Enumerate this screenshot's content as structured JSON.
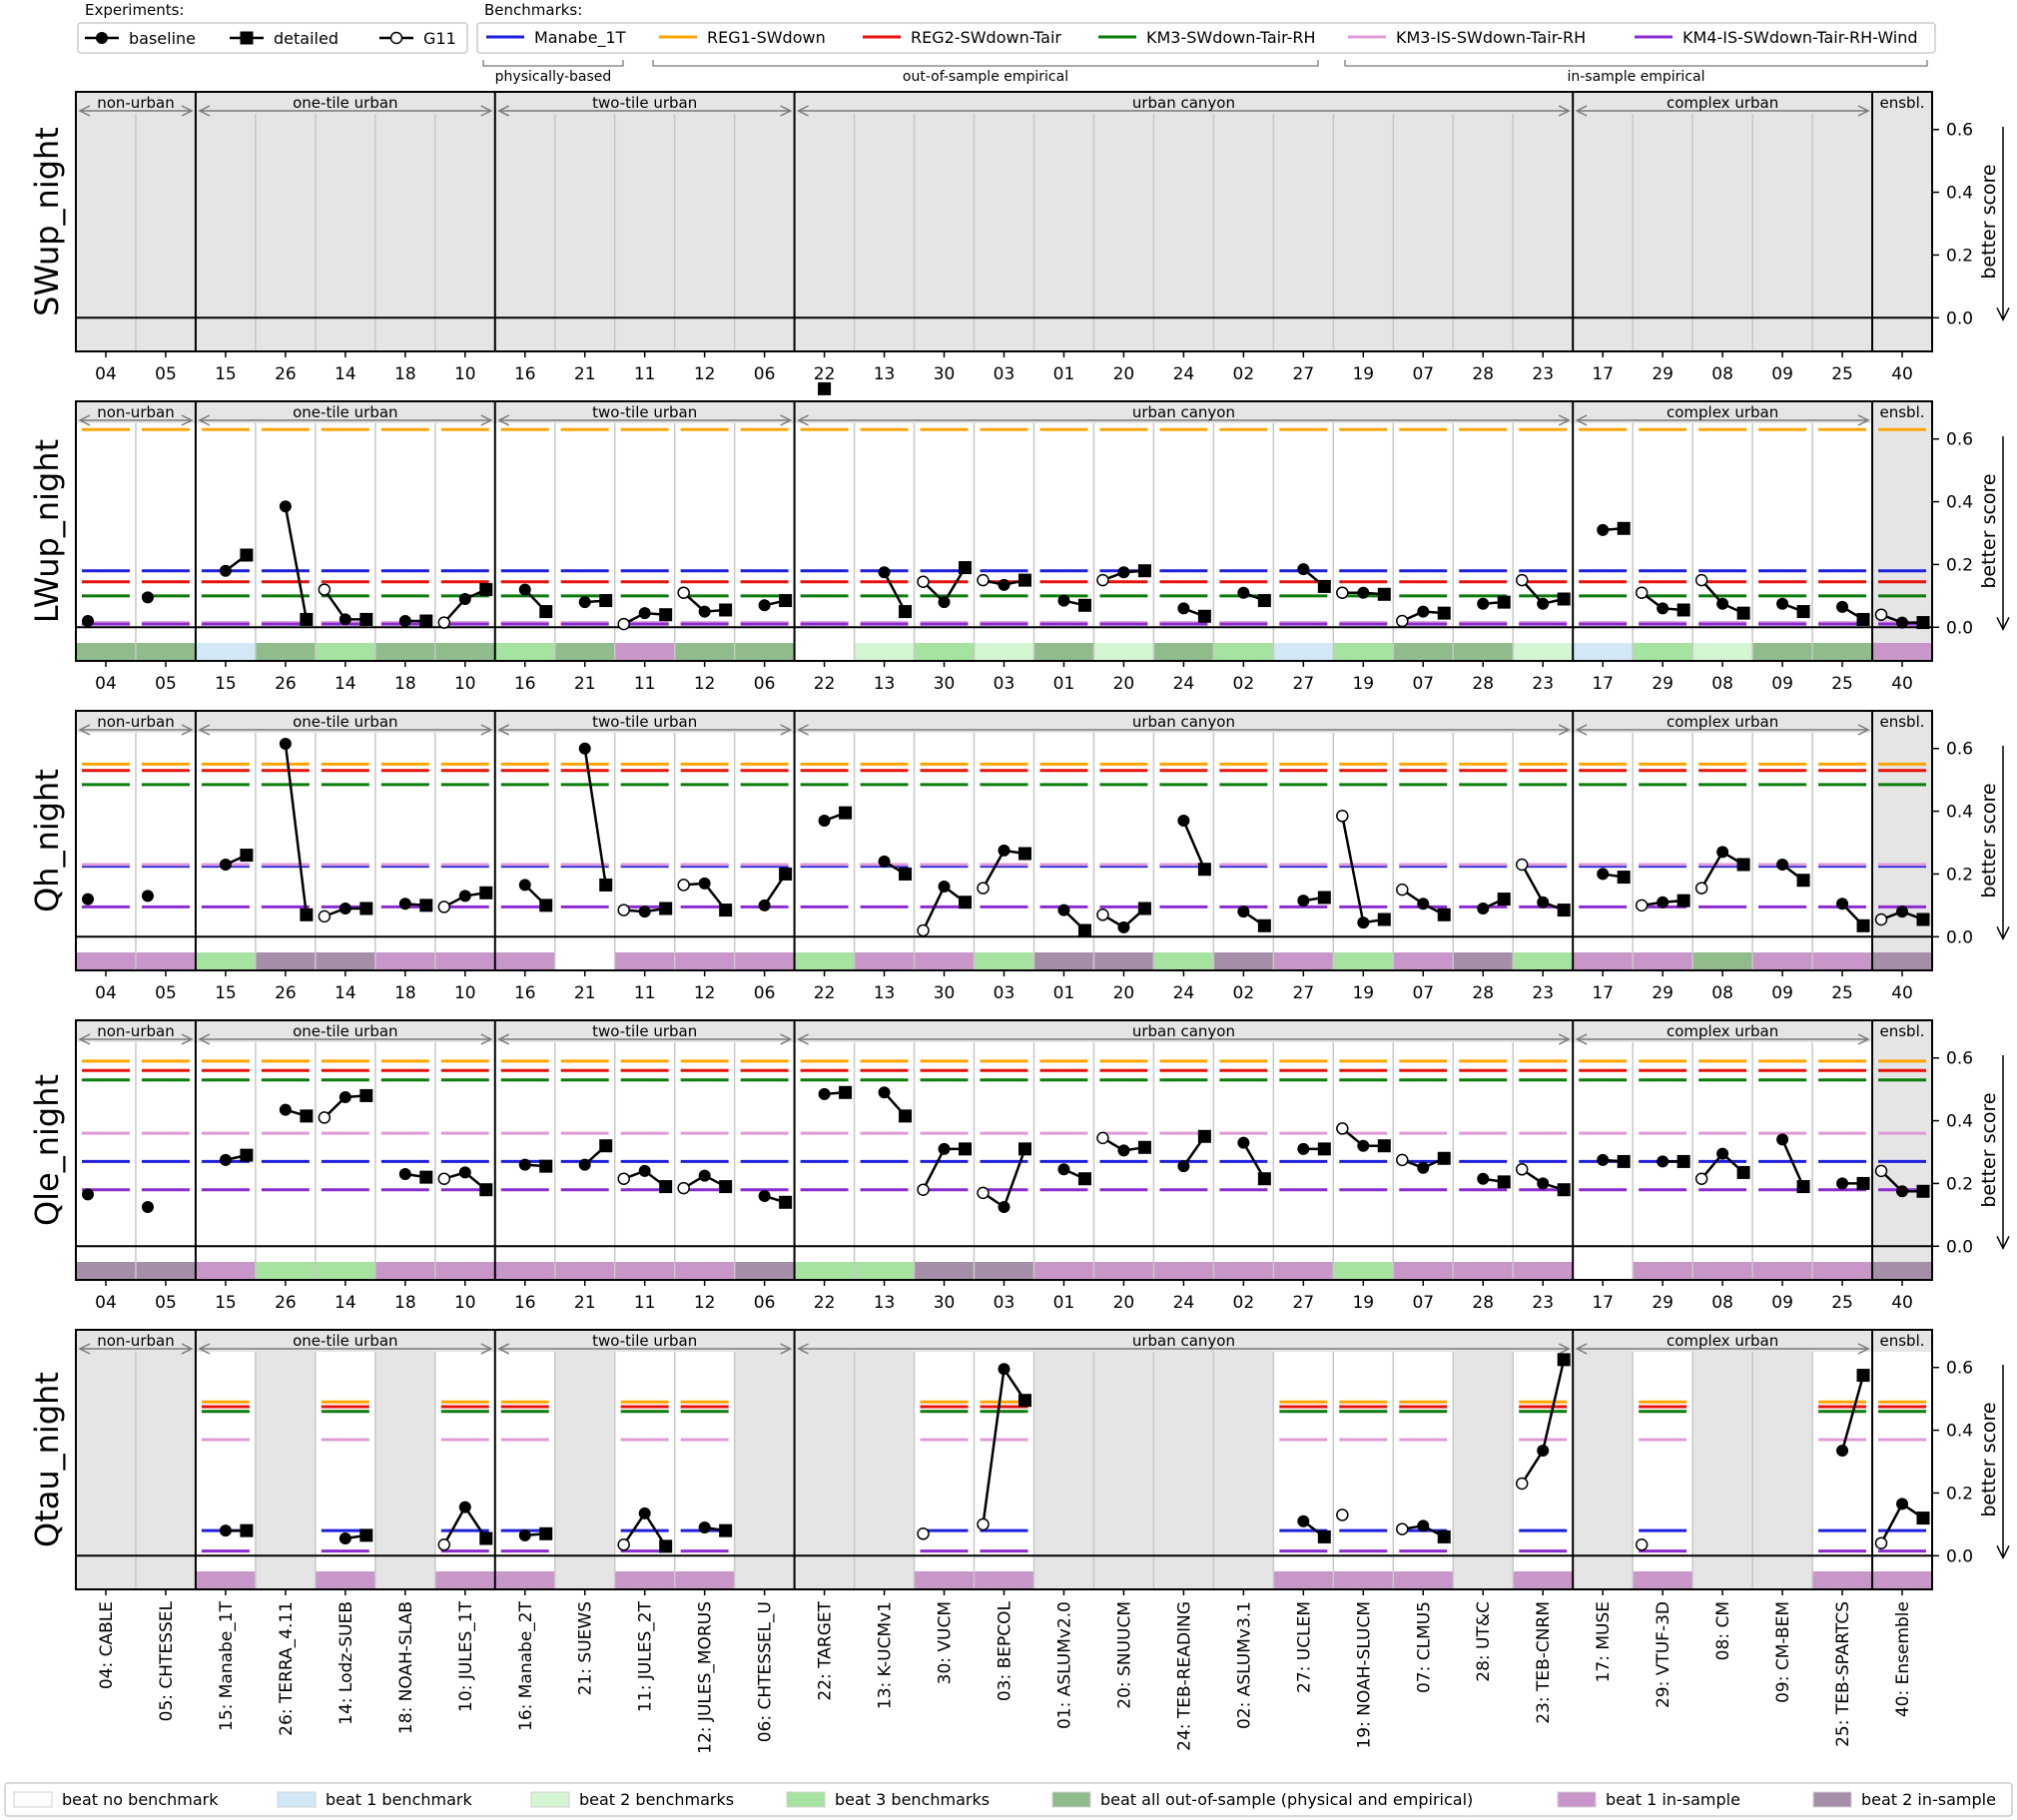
{
  "legend_experiments": {
    "title": "Experiments:",
    "items": [
      {
        "label": "baseline",
        "marker": "circle-filled"
      },
      {
        "label": "detailed",
        "marker": "square-filled"
      },
      {
        "label": "G11",
        "marker": "circle-open"
      }
    ]
  },
  "legend_benchmarks": {
    "title": "Benchmarks:",
    "items": [
      {
        "label": "Manabe_1T",
        "color": "#1f1fdd"
      },
      {
        "label": "REG1-SWdown",
        "color": "#ffa500"
      },
      {
        "label": "REG2-SWdown-Tair",
        "color": "#e8120c"
      },
      {
        "label": "KM3-SWdown-Tair-RH",
        "color": "#0b7d0b"
      },
      {
        "label": "KM3-IS-SWdown-Tair-RH",
        "color": "#e09ad8"
      },
      {
        "label": "KM4-IS-SWdown-Tair-RH-Wind",
        "color": "#8c2bd0"
      }
    ],
    "groups": [
      "physically-based",
      "out-of-sample empirical",
      "in-sample empirical"
    ]
  },
  "legend_bottom": [
    {
      "label": "beat no benchmark",
      "color": "#ffffff"
    },
    {
      "label": "beat 1 benchmark",
      "color": "#d2e8f7"
    },
    {
      "label": "beat 2 benchmarks",
      "color": "#d3f5d2"
    },
    {
      "label": "beat 3 benchmarks",
      "color": "#a7e3a0"
    },
    {
      "label": "beat all out-of-sample (physical and empirical)",
      "color": "#8fbc8a"
    },
    {
      "label": "beat 1 in-sample",
      "color": "#c996c9"
    },
    {
      "label": "beat 2 in-sample",
      "color": "#a58fa8"
    }
  ],
  "chart_data": {
    "type": "line",
    "y_axis_label": "better score",
    "ylim": [
      -0.05,
      0.72
    ],
    "yticks": [
      0.0,
      0.2,
      0.4,
      0.6
    ],
    "group_labels": [
      "non-urban",
      "one-tile urban",
      "two-tile urban",
      "urban canyon",
      "complex urban",
      "ensbl."
    ],
    "group_sizes": [
      2,
      5,
      5,
      13,
      5,
      1
    ],
    "models": [
      "04: CABLE",
      "05: CHTESSEL",
      "15: Manabe_1T",
      "26: TERRA_4.11",
      "14: Lodz-SUEB",
      "18: NOAH-SLAB",
      "10: JULES_1T",
      "16: Manabe_2T",
      "21: SUEWS",
      "11: JULES_2T",
      "12: JULES_MORUS",
      "06: CHTESSEL_U",
      "22: TARGET",
      "13: K-UCMv1",
      "30: VUCM",
      "03: BEPCOL",
      "01: ASLUMv2.0",
      "20: SNUUCM",
      "24: TEB-READING",
      "02: ASLUMv3.1",
      "27: UCLEM",
      "19: NOAH-SLUCM",
      "07: CLMU5",
      "28: UT&C",
      "23: TEB-CNRM",
      "17: MUSE",
      "29: VTUF-3D",
      "08: CM",
      "09: CM-BEM",
      "25: TEB-SPARTCS",
      "40: Ensemble"
    ],
    "model_ids": [
      "04",
      "05",
      "15",
      "26",
      "14",
      "18",
      "10",
      "16",
      "21",
      "11",
      "12",
      "06",
      "22",
      "13",
      "30",
      "03",
      "01",
      "20",
      "24",
      "02",
      "27",
      "19",
      "07",
      "28",
      "23",
      "17",
      "29",
      "08",
      "09",
      "25",
      "40"
    ],
    "panels": [
      {
        "name": "SWup_night",
        "benchmarks": {},
        "values": {},
        "shade": [
          "g",
          "g",
          "g",
          "g",
          "g",
          "g",
          "g",
          "g",
          "g",
          "g",
          "g",
          "g",
          "g",
          "g",
          "g",
          "g",
          "g",
          "g",
          "g",
          "g",
          "g",
          "g",
          "g",
          "g",
          "g",
          "g",
          "g",
          "g",
          "g",
          "g",
          "g"
        ],
        "strip": []
      },
      {
        "name": "LWup_night",
        "benchmarks": {
          "Manabe_1T": 0.18,
          "REG1-SWdown": 0.63,
          "REG2-SWdown-Tair": 0.145,
          "KM3-SWdown-Tair-RH": 0.1,
          "KM3-IS-SWdown-Tair-RH": 0.015,
          "KM4-IS-SWdown-Tair-RH-Wind": 0.01
        },
        "values": {
          "04": {
            "baseline": 0.02
          },
          "05": {
            "baseline": 0.095
          },
          "15": {
            "baseline": 0.18,
            "detailed": 0.23
          },
          "26": {
            "baseline": 0.385,
            "detailed": 0.025
          },
          "14": {
            "g11": 0.12,
            "baseline": 0.025,
            "detailed": 0.025
          },
          "18": {
            "baseline": 0.02,
            "detailed": 0.02
          },
          "10": {
            "g11": 0.015,
            "baseline": 0.09,
            "detailed": 0.12
          },
          "16": {
            "baseline": 0.12,
            "detailed": 0.05
          },
          "21": {
            "baseline": 0.08,
            "detailed": 0.085
          },
          "11": {
            "g11": 0.01,
            "baseline": 0.045,
            "detailed": 0.04
          },
          "12": {
            "g11": 0.11,
            "baseline": 0.05,
            "detailed": 0.055
          },
          "06": {
            "baseline": 0.07,
            "detailed": 0.085
          },
          "22": {
            "detailed": 0.76
          },
          "13": {
            "baseline": 0.175,
            "detailed": 0.05
          },
          "30": {
            "g11": 0.145,
            "baseline": 0.08,
            "detailed": 0.19
          },
          "03": {
            "g11": 0.15,
            "baseline": 0.135,
            "detailed": 0.15
          },
          "01": {
            "baseline": 0.085,
            "detailed": 0.07
          },
          "20": {
            "g11": 0.15,
            "baseline": 0.175,
            "detailed": 0.18
          },
          "24": {
            "baseline": 0.06,
            "detailed": 0.035
          },
          "02": {
            "baseline": 0.11,
            "detailed": 0.085
          },
          "27": {
            "baseline": 0.185,
            "detailed": 0.13
          },
          "19": {
            "g11": 0.11,
            "baseline": 0.11,
            "detailed": 0.105
          },
          "07": {
            "g11": 0.02,
            "baseline": 0.05,
            "detailed": 0.045
          },
          "28": {
            "baseline": 0.075,
            "detailed": 0.08
          },
          "23": {
            "g11": 0.15,
            "baseline": 0.075,
            "detailed": 0.09
          },
          "17": {
            "baseline": 0.31,
            "detailed": 0.315
          },
          "29": {
            "g11": 0.11,
            "baseline": 0.06,
            "detailed": 0.055
          },
          "08": {
            "g11": 0.15,
            "baseline": 0.075,
            "detailed": 0.045
          },
          "09": {
            "baseline": 0.075,
            "detailed": 0.05
          },
          "25": {
            "baseline": 0.065,
            "detailed": 0.025
          },
          "40": {
            "g11": 0.04,
            "baseline": 0.015,
            "detailed": 0.015
          }
        },
        "shade": [
          "w",
          "w",
          "w",
          "w",
          "w",
          "w",
          "w",
          "w",
          "w",
          "w",
          "w",
          "w",
          "w",
          "w",
          "w",
          "w",
          "w",
          "w",
          "w",
          "w",
          "w",
          "w",
          "w",
          "w",
          "w",
          "w",
          "w",
          "w",
          "w",
          "w",
          "g"
        ],
        "strip": [
          "4",
          "4",
          "1",
          "4",
          "3",
          "4",
          "4",
          "3",
          "4",
          "5",
          "4",
          "4",
          "0",
          "2",
          "3",
          "2",
          "4",
          "2",
          "4",
          "3",
          "1",
          "3",
          "4",
          "4",
          "2",
          "1",
          "3",
          "2",
          "4",
          "4",
          "5"
        ]
      },
      {
        "name": "Qh_night",
        "benchmarks": {
          "Manabe_1T": 0.225,
          "REG1-SWdown": 0.55,
          "REG2-SWdown-Tair": 0.53,
          "KM3-SWdown-Tair-RH": 0.485,
          "KM3-IS-SWdown-Tair-RH": 0.23,
          "KM4-IS-SWdown-Tair-RH-Wind": 0.095
        },
        "values": {
          "04": {
            "baseline": 0.12
          },
          "05": {
            "baseline": 0.13
          },
          "15": {
            "baseline": 0.23,
            "detailed": 0.26
          },
          "26": {
            "baseline": 0.615,
            "detailed": 0.07
          },
          "14": {
            "g11": 0.065,
            "baseline": 0.09,
            "detailed": 0.09
          },
          "18": {
            "baseline": 0.105,
            "detailed": 0.1
          },
          "10": {
            "g11": 0.095,
            "baseline": 0.13,
            "detailed": 0.14
          },
          "16": {
            "baseline": 0.165,
            "detailed": 0.1
          },
          "21": {
            "baseline": 0.6,
            "detailed": 0.165
          },
          "11": {
            "g11": 0.085,
            "baseline": 0.08,
            "detailed": 0.09
          },
          "12": {
            "g11": 0.165,
            "baseline": 0.17,
            "detailed": 0.085
          },
          "06": {
            "baseline": 0.1,
            "detailed": 0.2
          },
          "22": {
            "baseline": 0.37,
            "detailed": 0.395
          },
          "13": {
            "baseline": 0.24,
            "detailed": 0.2
          },
          "30": {
            "g11": 0.02,
            "baseline": 0.16,
            "detailed": 0.11
          },
          "03": {
            "g11": 0.155,
            "baseline": 0.275,
            "detailed": 0.265
          },
          "01": {
            "baseline": 0.085,
            "detailed": 0.02
          },
          "20": {
            "g11": 0.07,
            "baseline": 0.03,
            "detailed": 0.09
          },
          "24": {
            "baseline": 0.37,
            "detailed": 0.215
          },
          "02": {
            "baseline": 0.08,
            "detailed": 0.035
          },
          "27": {
            "baseline": 0.115,
            "detailed": 0.125
          },
          "19": {
            "g11": 0.385,
            "baseline": 0.045,
            "detailed": 0.055
          },
          "07": {
            "g11": 0.15,
            "baseline": 0.105,
            "detailed": 0.07
          },
          "28": {
            "baseline": 0.09,
            "detailed": 0.12
          },
          "23": {
            "g11": 0.23,
            "baseline": 0.11,
            "detailed": 0.085
          },
          "17": {
            "baseline": 0.2,
            "detailed": 0.19
          },
          "29": {
            "g11": 0.1,
            "baseline": 0.11,
            "detailed": 0.115
          },
          "08": {
            "g11": 0.155,
            "baseline": 0.27,
            "detailed": 0.23
          },
          "09": {
            "baseline": 0.23,
            "detailed": 0.18
          },
          "25": {
            "baseline": 0.105,
            "detailed": 0.035
          },
          "40": {
            "g11": 0.055,
            "baseline": 0.08,
            "detailed": 0.055
          }
        },
        "shade": [
          "w",
          "w",
          "w",
          "w",
          "w",
          "w",
          "w",
          "w",
          "w",
          "w",
          "w",
          "w",
          "w",
          "w",
          "w",
          "w",
          "w",
          "w",
          "w",
          "w",
          "w",
          "w",
          "w",
          "w",
          "w",
          "w",
          "w",
          "w",
          "w",
          "w",
          "g"
        ],
        "strip": [
          "5",
          "5",
          "3",
          "6",
          "6",
          "5",
          "5",
          "5",
          "0",
          "5",
          "5",
          "5",
          "3",
          "5",
          "5",
          "3",
          "6",
          "6",
          "3",
          "6",
          "5",
          "3",
          "5",
          "6",
          "3",
          "5",
          "5",
          "4",
          "5",
          "5",
          "6"
        ]
      },
      {
        "name": "Qle_night",
        "benchmarks": {
          "Manabe_1T": 0.27,
          "REG1-SWdown": 0.59,
          "REG2-SWdown-Tair": 0.56,
          "KM3-SWdown-Tair-RH": 0.53,
          "KM3-IS-SWdown-Tair-RH": 0.36,
          "KM4-IS-SWdown-Tair-RH-Wind": 0.18
        },
        "values": {
          "04": {
            "baseline": 0.165
          },
          "05": {
            "baseline": 0.125
          },
          "15": {
            "baseline": 0.275,
            "detailed": 0.29
          },
          "26": {
            "baseline": 0.435,
            "detailed": 0.415
          },
          "14": {
            "g11": 0.41,
            "baseline": 0.475,
            "detailed": 0.48
          },
          "18": {
            "baseline": 0.23,
            "detailed": 0.22
          },
          "10": {
            "g11": 0.215,
            "baseline": 0.235,
            "detailed": 0.18
          },
          "16": {
            "baseline": 0.26,
            "detailed": 0.255
          },
          "21": {
            "baseline": 0.26,
            "detailed": 0.32
          },
          "11": {
            "g11": 0.215,
            "baseline": 0.24,
            "detailed": 0.19
          },
          "12": {
            "g11": 0.185,
            "baseline": 0.225,
            "detailed": 0.19
          },
          "06": {
            "baseline": 0.16,
            "detailed": 0.14
          },
          "22": {
            "baseline": 0.485,
            "detailed": 0.49
          },
          "13": {
            "baseline": 0.49,
            "detailed": 0.415
          },
          "30": {
            "g11": 0.18,
            "baseline": 0.31,
            "detailed": 0.31
          },
          "03": {
            "g11": 0.17,
            "baseline": 0.125,
            "detailed": 0.31
          },
          "01": {
            "baseline": 0.245,
            "detailed": 0.215
          },
          "20": {
            "g11": 0.345,
            "baseline": 0.305,
            "detailed": 0.315
          },
          "24": {
            "baseline": 0.255,
            "detailed": 0.35
          },
          "02": {
            "baseline": 0.33,
            "detailed": 0.215
          },
          "27": {
            "baseline": 0.31,
            "detailed": 0.31
          },
          "19": {
            "g11": 0.375,
            "baseline": 0.32,
            "detailed": 0.32
          },
          "07": {
            "g11": 0.275,
            "baseline": 0.25,
            "detailed": 0.28
          },
          "28": {
            "baseline": 0.215,
            "detailed": 0.205
          },
          "23": {
            "g11": 0.245,
            "baseline": 0.2,
            "detailed": 0.18
          },
          "17": {
            "baseline": 0.275,
            "detailed": 0.27
          },
          "29": {
            "baseline": 0.27,
            "detailed": 0.27
          },
          "08": {
            "g11": 0.215,
            "baseline": 0.295,
            "detailed": 0.235
          },
          "09": {
            "baseline": 0.34,
            "detailed": 0.19
          },
          "25": {
            "baseline": 0.2,
            "detailed": 0.2
          },
          "40": {
            "g11": 0.24,
            "baseline": 0.175,
            "detailed": 0.175
          }
        },
        "shade": [
          "w",
          "w",
          "w",
          "w",
          "w",
          "w",
          "w",
          "w",
          "w",
          "w",
          "w",
          "w",
          "w",
          "w",
          "w",
          "w",
          "w",
          "w",
          "w",
          "w",
          "w",
          "w",
          "w",
          "w",
          "w",
          "w",
          "w",
          "w",
          "w",
          "w",
          "g"
        ],
        "strip": [
          "6",
          "6",
          "5",
          "3",
          "3",
          "5",
          "5",
          "5",
          "5",
          "5",
          "5",
          "6",
          "3",
          "3",
          "6",
          "6",
          "5",
          "5",
          "5",
          "5",
          "5",
          "3",
          "5",
          "5",
          "5",
          "0",
          "5",
          "5",
          "5",
          "5",
          "6"
        ]
      },
      {
        "name": "Qtau_night",
        "benchmarks": {
          "Manabe_1T": 0.08,
          "REG1-SWdown": 0.49,
          "REG2-SWdown-Tair": 0.475,
          "KM3-SWdown-Tair-RH": 0.46,
          "KM3-IS-SWdown-Tair-RH": 0.37,
          "KM4-IS-SWdown-Tair-RH-Wind": 0.015
        },
        "values": {
          "15": {
            "baseline": 0.08,
            "detailed": 0.08
          },
          "14": {
            "baseline": 0.055,
            "detailed": 0.065
          },
          "10": {
            "g11": 0.035,
            "baseline": 0.155,
            "detailed": 0.055
          },
          "16": {
            "baseline": 0.065,
            "detailed": 0.07
          },
          "11": {
            "g11": 0.035,
            "baseline": 0.135,
            "detailed": 0.03
          },
          "12": {
            "baseline": 0.09,
            "detailed": 0.08
          },
          "30": {
            "g11": 0.07
          },
          "03": {
            "g11": 0.1,
            "baseline": 0.595,
            "detailed": 0.495
          },
          "27": {
            "baseline": 0.11,
            "detailed": 0.06
          },
          "19": {
            "g11": 0.13
          },
          "07": {
            "g11": 0.085,
            "baseline": 0.095,
            "detailed": 0.06
          },
          "23": {
            "g11": 0.23,
            "baseline": 0.335,
            "detailed": 0.625
          },
          "29": {
            "g11": 0.035
          },
          "25": {
            "baseline": 0.335,
            "detailed": 0.575
          },
          "40": {
            "g11": 0.04,
            "baseline": 0.165,
            "detailed": 0.12
          }
        },
        "shade": [
          "g",
          "g",
          "w",
          "g",
          "w",
          "g",
          "w",
          "w",
          "g",
          "w",
          "w",
          "g",
          "g",
          "g",
          "w",
          "w",
          "g",
          "g",
          "g",
          "g",
          "w",
          "w",
          "w",
          "g",
          "w",
          "g",
          "w",
          "g",
          "g",
          "w",
          "w"
        ],
        "strip": [
          "n",
          "n",
          "5",
          "n",
          "5",
          "n",
          "5",
          "5",
          "n",
          "5",
          "5",
          "n",
          "n",
          "n",
          "5",
          "5",
          "n",
          "n",
          "n",
          "n",
          "5",
          "5",
          "5",
          "n",
          "5",
          "n",
          "5",
          "n",
          "n",
          "5",
          "5"
        ]
      }
    ]
  }
}
